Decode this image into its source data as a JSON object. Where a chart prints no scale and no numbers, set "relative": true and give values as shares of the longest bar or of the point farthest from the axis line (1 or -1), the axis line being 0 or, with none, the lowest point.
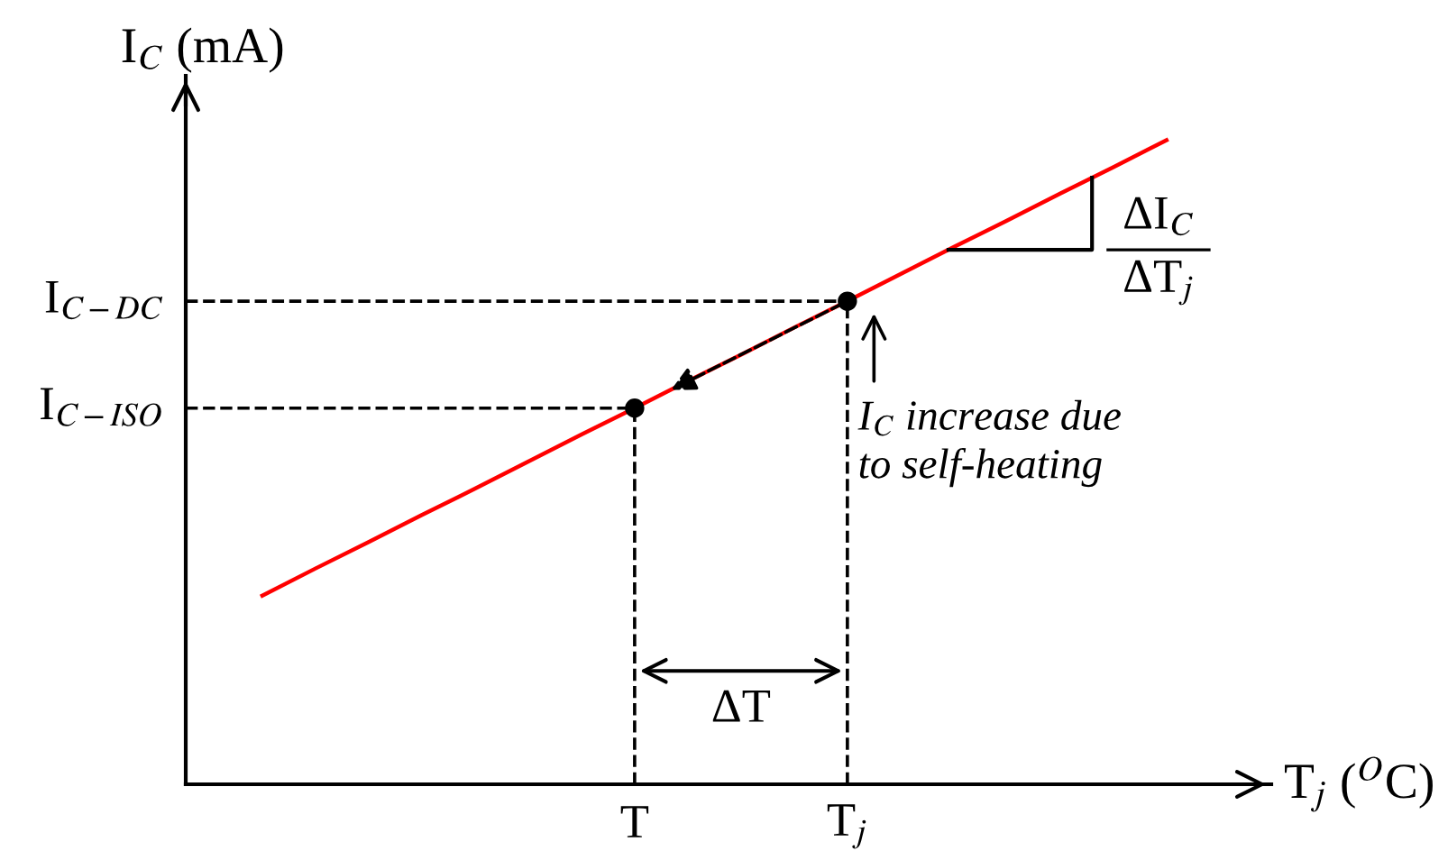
{
  "chart_data": {
    "type": "line",
    "relative": true,
    "xlabel": "T$_{j}$ ($^{O}$C)",
    "ylabel": "I$_{C}$ (mA)",
    "categories": [
      null,
      null,
      null,
      null,
      null,
      null,
      null,
      "T",
      null,
      null,
      null,
      "T$_{j}$",
      null,
      null,
      null,
      null,
      null,
      null
    ],
    "series": [
      {
        "color": "#ff0000",
        "values": [
          0.293,
          0.335,
          0.376,
          0.418,
          0.459,
          0.501,
          0.543,
          0.584,
          0.626,
          0.667,
          0.709,
          0.75,
          0.792,
          0.834,
          0.875,
          0.917,
          0.958,
          1.0
        ]
      },
      {
        "type": "scatter",
        "color": "#000000",
        "values": [
          null,
          null,
          null,
          null,
          null,
          null,
          null,
          0.584,
          null,
          null,
          null,
          0.75,
          null,
          null,
          null,
          null,
          null,
          null
        ]
      }
    ],
    "annotations": [
      {
        "text": "I$_{C−ISO}$",
        "x": "T",
        "y": 0.584
      },
      {
        "text": "I$_{C−DC}$",
        "x": "T$_{j}$",
        "y": 0.75
      },
      "ΔT",
      "ΔI$_{C}$",
      "ΔT$_{j}$",
      "I$_{C}$ increase due\nto self-heating"
    ]
  }
}
